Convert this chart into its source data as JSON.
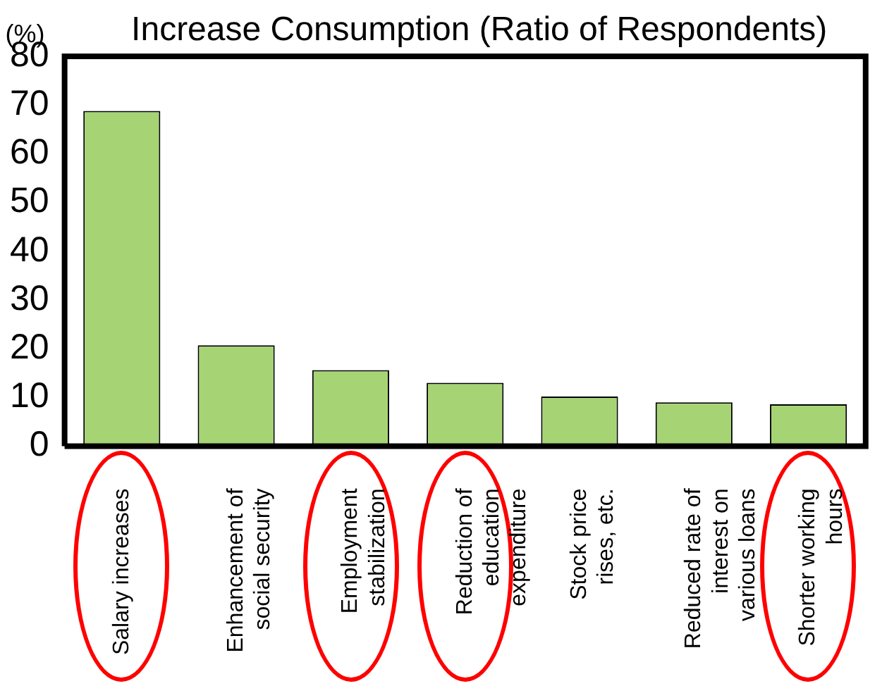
{
  "chart_data": {
    "type": "bar",
    "title": "Increase Consumption (Ratio of Respondents)",
    "ylabel": "(%)",
    "categories": [
      "Salary increases",
      "Enhancement of social security",
      "Employment stabilization",
      "Reduction of education expenditure",
      "Stock price rises, etc.",
      "Reduced rate of interest on various loans",
      "Shorter working hours"
    ],
    "values": [
      68.8,
      20.7,
      15.6,
      13,
      10.2,
      9,
      8.6
    ],
    "color": "#a6d475",
    "ylim": [
      0,
      80
    ],
    "yticks": [
      0,
      10,
      20,
      30,
      40,
      50,
      60,
      70,
      80
    ],
    "grid": false,
    "legend": false
  }
}
